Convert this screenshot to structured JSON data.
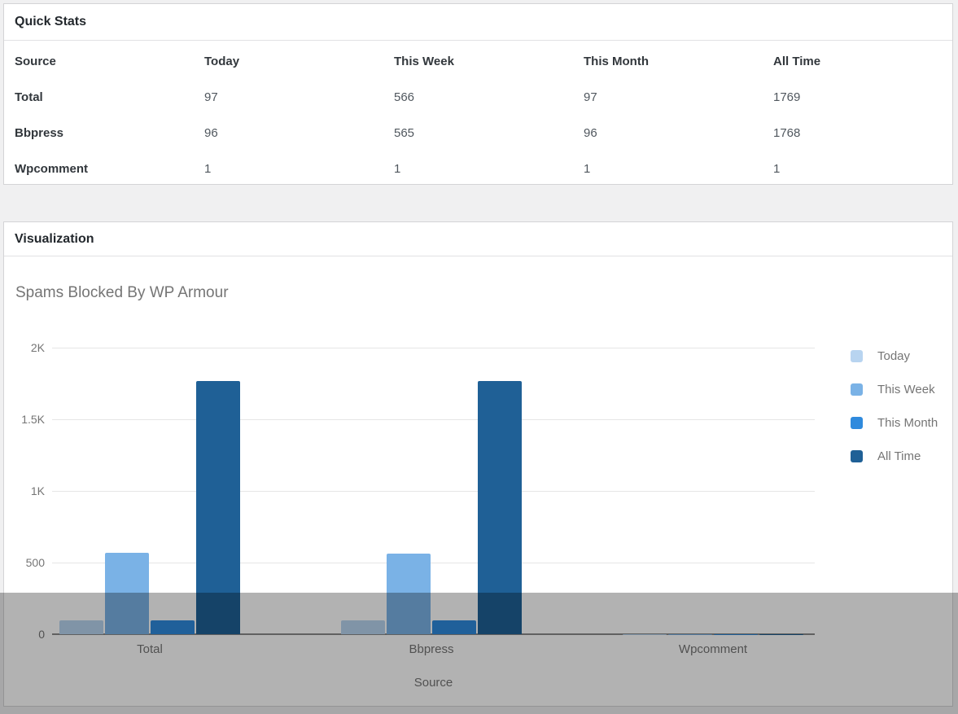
{
  "quick_stats": {
    "title": "Quick Stats",
    "columns": [
      "Source",
      "Today",
      "This Week",
      "This Month",
      "All Time"
    ],
    "rows": [
      {
        "label": "Total",
        "values": [
          "97",
          "566",
          "97",
          "1769"
        ]
      },
      {
        "label": "Bbpress",
        "values": [
          "96",
          "565",
          "96",
          "1768"
        ]
      },
      {
        "label": "Wpcomment",
        "values": [
          "1",
          "1",
          "1",
          "1"
        ]
      }
    ]
  },
  "visualization": {
    "title": "Visualization"
  },
  "chart_data": {
    "type": "bar",
    "title": "Spams Blocked By WP Armour",
    "xlabel": "Source",
    "ylabel": "",
    "categories": [
      "Total",
      "Bbpress",
      "Wpcomment"
    ],
    "series": [
      {
        "name": "Today",
        "color": "#b8d4f0",
        "values": [
          97,
          96,
          1
        ]
      },
      {
        "name": "This Week",
        "color": "#7ab2e6",
        "values": [
          566,
          565,
          1
        ]
      },
      {
        "name": "This Month",
        "color": "#2f8add",
        "values": [
          97,
          96,
          1
        ]
      },
      {
        "name": "All Time",
        "color": "#1f6096",
        "values": [
          1769,
          1768,
          1
        ]
      }
    ],
    "ylim": [
      0,
      2000
    ],
    "yticks": [
      {
        "label": "0",
        "value": 0
      },
      {
        "label": "500",
        "value": 500
      },
      {
        "label": "1K",
        "value": 1000
      },
      {
        "label": "1.5K",
        "value": 1500
      },
      {
        "label": "2K",
        "value": 2000
      }
    ],
    "legend_position": "right",
    "grid": true
  },
  "theme": {
    "page_bg": "#f0f0f1",
    "panel_border": "#d4d4d6",
    "text_dark": "#32373c",
    "text_gray": "#757575",
    "overlay": "rgba(0,0,0,0.30)"
  }
}
